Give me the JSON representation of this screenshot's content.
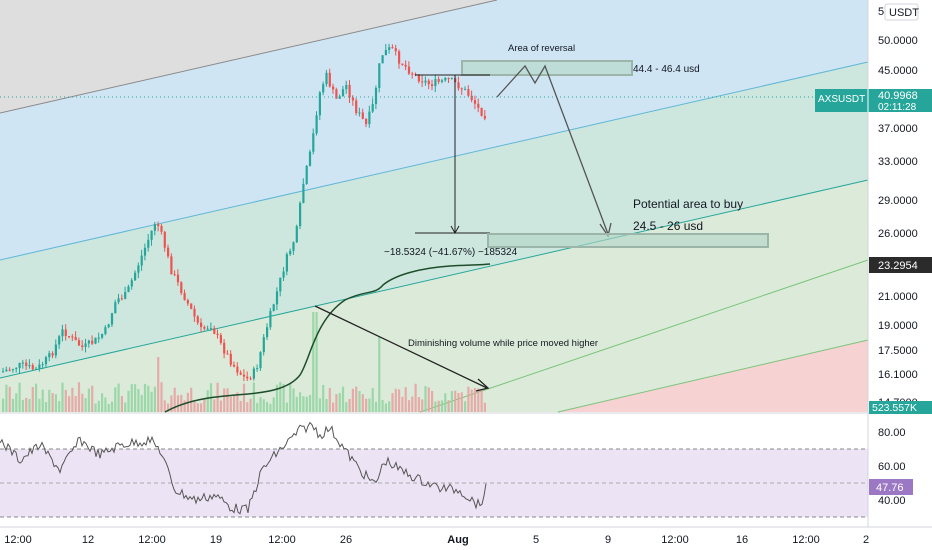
{
  "app": {
    "symbol": "AXSUSDT",
    "currency": "USDT"
  },
  "chart_data": {
    "type": "candlestick",
    "price_axis": {
      "ticks": [
        "50.0000",
        "45.0000",
        "37.0000",
        "33.0000",
        "29.0000",
        "26.0000",
        "21.0000",
        "19.0000",
        "17.5000",
        "16.1000",
        "14.7000"
      ],
      "currency_badge": "USDT",
      "cut_top_tick": "5"
    },
    "time_axis": {
      "ticks": [
        "12:00",
        "12",
        "12:00",
        "19",
        "12:00",
        "26",
        "Aug",
        "5",
        "9",
        "12:00",
        "16",
        "12:00",
        "2"
      ]
    },
    "price_labels": [
      {
        "name": "current-price",
        "text": "40.9968",
        "subtext": "02:11:28",
        "symbol": "AXSUSDT",
        "color": "#26a69a"
      },
      {
        "name": "vwap-price",
        "text": "23.2954",
        "color": "#2b2b2b"
      },
      {
        "name": "volume-value",
        "text": "523.557K",
        "color": "#26a69a"
      }
    ],
    "annotations": {
      "reversal_title": "Area of reversal",
      "reversal_range": "44.4 - 46.4 usd",
      "buy_title": "Potential area to buy",
      "buy_range": "24.5 - 26 usd",
      "measure": "−18.5324 (−41.67%) −185324",
      "volume_note": "Diminishing volume while price moved higher"
    },
    "rsi": {
      "ticks": [
        "80.00",
        "60.00",
        "40.00"
      ],
      "value": "47.76",
      "band": [
        30,
        70
      ]
    },
    "colors": {
      "up": "#26a69a",
      "down": "#ef5350",
      "channel_blue": "#cfe5f3",
      "channel_green": "#d6eadb",
      "channel_red": "#f6d3d3",
      "channel_gray": "#dcdcdc",
      "rsi_band": "#ece4f4",
      "rsi_line": "#555555"
    }
  }
}
